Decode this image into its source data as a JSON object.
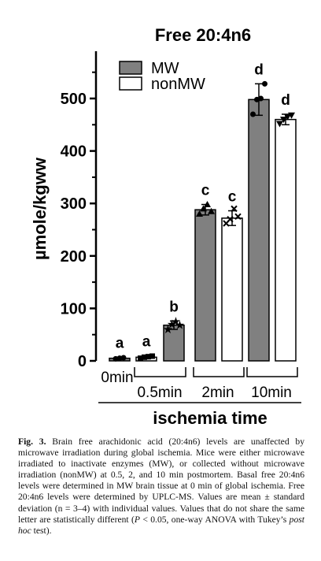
{
  "chart_data": {
    "type": "bar",
    "title": "Free 20:4n6",
    "ylabel": "µmole/kgww",
    "xlabel": "ischemia time",
    "ylim": [
      0,
      590
    ],
    "yticks": [
      "0",
      "100",
      "200",
      "300",
      "400",
      "500"
    ],
    "group_labels": [
      "0min",
      "0.5min",
      "2min",
      "10min"
    ],
    "legend": [
      {
        "name": "MW",
        "color": "#808080"
      },
      {
        "name": "nonMW",
        "color": "#ffffff"
      }
    ],
    "bars": [
      {
        "group": "0min",
        "series": "MW",
        "value": 5,
        "sd": 2,
        "letter": "a",
        "points": [
          4,
          5,
          6
        ],
        "marker": "circle"
      },
      {
        "group": "0.5min",
        "series": "nonMW",
        "value": 7,
        "sd": 3,
        "letter": "a",
        "points": [
          5,
          7,
          8,
          9
        ],
        "marker": "square"
      },
      {
        "group": "0.5min",
        "series": "MW",
        "value": 68,
        "sd": 8,
        "letter": "b",
        "points": [
          60,
          70,
          75,
          68
        ],
        "marker": "star"
      },
      {
        "group": "2min",
        "series": "MW",
        "value": 288,
        "sd": 10,
        "letter": "c",
        "points": [
          280,
          290,
          298,
          285
        ],
        "marker": "triangle"
      },
      {
        "group": "2min",
        "series": "nonMW",
        "value": 272,
        "sd": 14,
        "letter": "c",
        "points": [
          262,
          270,
          290,
          275
        ],
        "marker": "cross"
      },
      {
        "group": "10min",
        "series": "MW",
        "value": 498,
        "sd": 30,
        "letter": "d",
        "points": [
          470,
          498,
          500,
          528
        ],
        "marker": "circle"
      },
      {
        "group": "10min",
        "series": "nonMW",
        "value": 460,
        "sd": 10,
        "letter": "d",
        "points": [
          452,
          460,
          465,
          468
        ],
        "marker": "triangle-down"
      }
    ]
  },
  "caption": {
    "lead": "Fig. 3.",
    "part1": "  Brain free arachidonic acid (20:4n6) levels are unaffected by microwave irradiation during global ischemia. Mice were either microwave irradiated to inactivate enzymes (MW), or collected without microwave irradiation (nonMW) at 0.5, 2, and 10 min postmortem. Basal free 20:4n6 levels were determined in MW brain tissue at 0 min of global ischemia. Free 20:4n6 levels were determined by UPLC-MS. Values are mean ± standard deviation (n = 3–4) with individual values. Values that do not share the same letter are statistically different (",
    "p_italic": "P",
    "part2": " < 0.05, one-way ANOVA with Tukey’s ",
    "posthoc_italic": "post hoc",
    "part3": " test)."
  }
}
